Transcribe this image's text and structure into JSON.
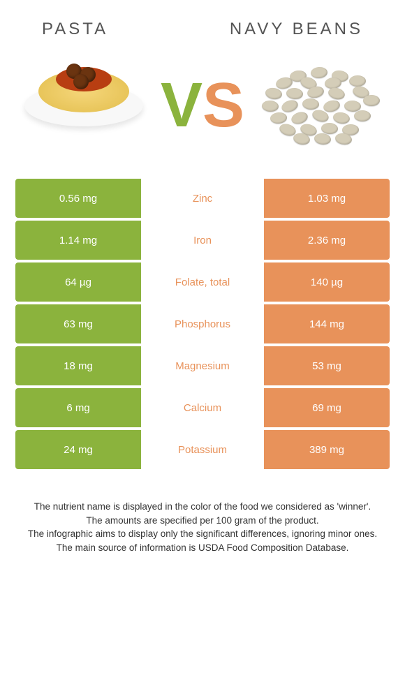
{
  "header": {
    "left_label": "PASTA",
    "right_label": "NAVY BEANS"
  },
  "vs": {
    "v": "V",
    "s": "S"
  },
  "colors": {
    "left": "#8bb33d",
    "right": "#e8925a",
    "row_bg": "#ffffff",
    "text_dark": "#333333"
  },
  "nutrients": [
    {
      "name": "Zinc",
      "left": "0.56 mg",
      "right": "1.03 mg",
      "winner": "right"
    },
    {
      "name": "Iron",
      "left": "1.14 mg",
      "right": "2.36 mg",
      "winner": "right"
    },
    {
      "name": "Folate, total",
      "left": "64 µg",
      "right": "140 µg",
      "winner": "right"
    },
    {
      "name": "Phosphorus",
      "left": "63 mg",
      "right": "144 mg",
      "winner": "right"
    },
    {
      "name": "Magnesium",
      "left": "18 mg",
      "right": "53 mg",
      "winner": "right"
    },
    {
      "name": "Calcium",
      "left": "6 mg",
      "right": "69 mg",
      "winner": "right"
    },
    {
      "name": "Potassium",
      "left": "24 mg",
      "right": "389 mg",
      "winner": "right"
    }
  ],
  "footnotes": [
    "The nutrient name is displayed in the color of the food we considered as 'winner'.",
    "The amounts are specified per 100 gram of the product.",
    "The infographic aims to display only the significant differences, ignoring minor ones.",
    "The main source of information is USDA Food Composition Database."
  ]
}
